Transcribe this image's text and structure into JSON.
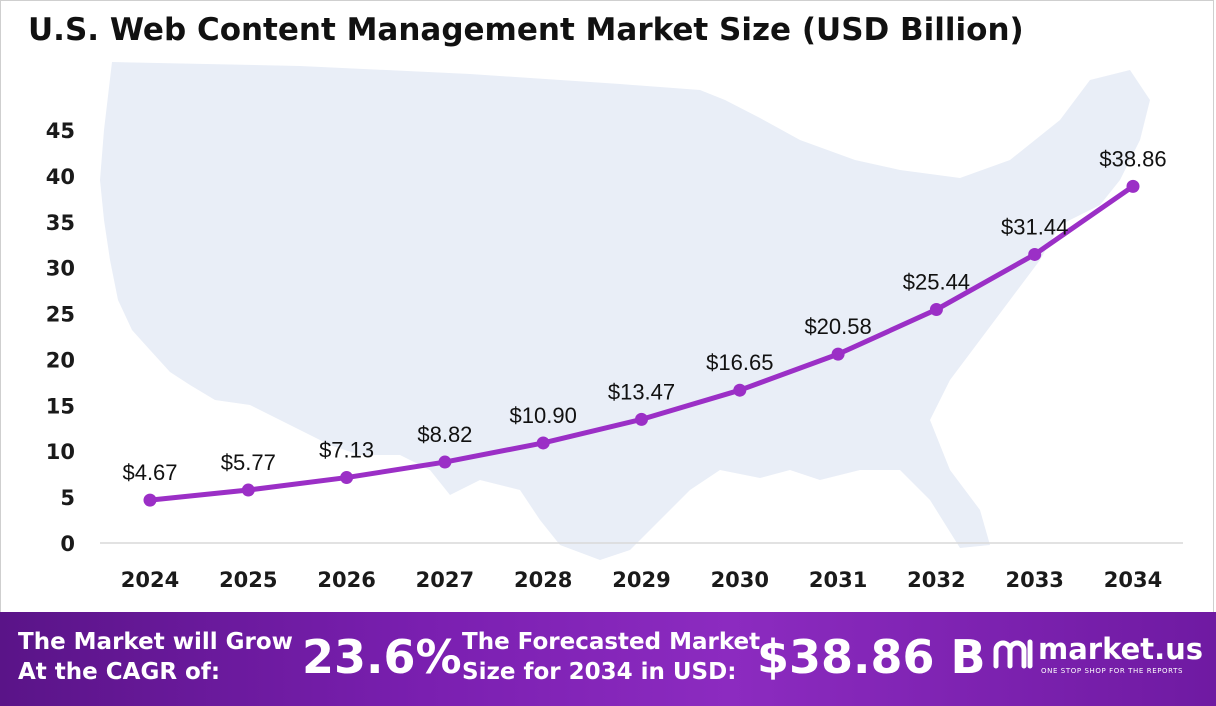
{
  "title": "U.S. Web Content Management Market Size (USD Billion)",
  "colors": {
    "line": "#9b2fc6",
    "marker": "#9b2fc6",
    "map": "#e9eef7",
    "footer_start": "#5a1488",
    "footer_end": "#8c2bc0"
  },
  "chart_data": {
    "type": "line",
    "title": "U.S. Web Content Management Market Size (USD Billion)",
    "categories": [
      "2024",
      "2025",
      "2026",
      "2027",
      "2028",
      "2029",
      "2030",
      "2031",
      "2032",
      "2033",
      "2034"
    ],
    "series": [
      {
        "values": [
          4.67,
          5.77,
          7.13,
          8.82,
          10.9,
          13.47,
          16.65,
          20.58,
          25.44,
          31.44,
          38.86
        ],
        "labels": [
          "$4.67",
          "$5.77",
          "$7.13",
          "$8.82",
          "$10.90",
          "$13.47",
          "$16.65",
          "$20.58",
          "$25.44",
          "$31.44",
          "$38.86"
        ]
      }
    ],
    "y_ticks": [
      "0",
      "5",
      "10",
      "15",
      "20",
      "25",
      "30",
      "35",
      "40",
      "45"
    ],
    "ylim": [
      0,
      45
    ],
    "xlabel": "",
    "ylabel": "",
    "grid": false
  },
  "footer": {
    "cagr_label_line1": "The Market will Grow",
    "cagr_label_line2": "At the CAGR of:",
    "cagr_value": "23.6%",
    "forecast_label_line1": "The Forecasted Market",
    "forecast_label_line2": "Size for 2034 in USD:",
    "forecast_value": "$38.86 B",
    "brand_name": "market.us",
    "brand_tagline": "ONE STOP SHOP FOR THE REPORTS",
    "brand_icon": "market-us-logo-icon"
  }
}
